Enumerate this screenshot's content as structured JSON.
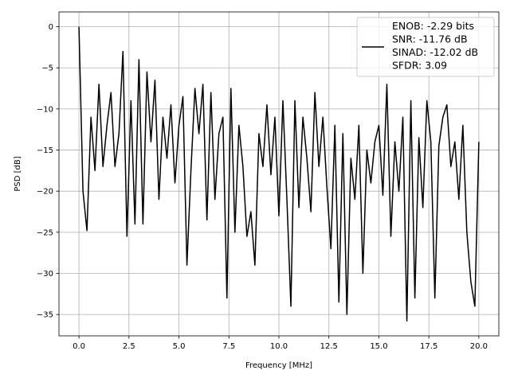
{
  "chart_data": {
    "type": "line",
    "xlabel": "Frequency [MHz]",
    "ylabel": "PSD [dB]",
    "x": [
      0.0,
      0.2,
      0.4,
      0.6,
      0.8,
      1.0,
      1.2,
      1.4,
      1.6,
      1.8,
      2.0,
      2.2,
      2.4,
      2.6,
      2.8,
      3.0,
      3.2,
      3.4,
      3.6,
      3.8,
      4.0,
      4.2,
      4.4,
      4.6,
      4.8,
      5.0,
      5.2,
      5.4,
      5.6,
      5.8,
      6.0,
      6.2,
      6.4,
      6.6,
      6.8,
      7.0,
      7.2,
      7.4,
      7.6,
      7.8,
      8.0,
      8.2,
      8.4,
      8.6,
      8.8,
      9.0,
      9.2,
      9.4,
      9.6,
      9.8,
      10.0,
      10.2,
      10.4,
      10.6,
      10.8,
      11.0,
      11.2,
      11.4,
      11.6,
      11.8,
      12.0,
      12.2,
      12.4,
      12.6,
      12.8,
      13.0,
      13.2,
      13.4,
      13.6,
      13.8,
      14.0,
      14.2,
      14.4,
      14.6,
      14.8,
      15.0,
      15.2,
      15.4,
      15.6,
      15.8,
      16.0,
      16.2,
      16.4,
      16.6,
      16.8,
      17.0,
      17.2,
      17.4,
      17.6,
      17.8,
      18.0,
      18.2,
      18.4,
      18.6,
      18.8,
      19.0,
      19.2,
      19.4,
      19.6,
      19.8,
      20.0
    ],
    "series": [
      {
        "name": "ENOB: -2.29 bits\nSNR: -11.76 dB\nSINAD: -12.02 dB\nSFDR: 3.09",
        "color": "#000000",
        "values": [
          0,
          -20,
          -24.8,
          -11,
          -17.5,
          -7,
          -17,
          -12,
          -8,
          -17,
          -13,
          -3,
          -25.5,
          -9,
          -24,
          -4,
          -24,
          -5.5,
          -14,
          -6.5,
          -21,
          -11,
          -16,
          -9.5,
          -19,
          -12,
          -8.5,
          -29,
          -17.5,
          -7.5,
          -13,
          -7,
          -23.5,
          -8,
          -21,
          -13,
          -11,
          -33,
          -7.5,
          -25,
          -12,
          -17,
          -25.5,
          -22.5,
          -29,
          -13,
          -17,
          -9.5,
          -18,
          -11,
          -23,
          -9,
          -21,
          -34,
          -9,
          -22,
          -11,
          -16,
          -22.5,
          -8,
          -17,
          -11,
          -19.5,
          -27,
          -12,
          -33.5,
          -13,
          -35,
          -16,
          -21,
          -12,
          -30,
          -15,
          -19,
          -14,
          -12,
          -20.5,
          -7,
          -25.5,
          -14,
          -20,
          -11,
          -35.8,
          -9,
          -33,
          -13.5,
          -22,
          -9,
          -14,
          -33,
          -14.5,
          -11,
          -9.5,
          -17,
          -14,
          -21,
          -12,
          -25,
          -31,
          -34,
          -14
        ]
      }
    ],
    "xlim": [
      -1,
      21
    ],
    "ylim": [
      -37.6,
      1.8
    ],
    "xticks": [
      {
        "value": 0,
        "label": "0.0"
      },
      2.5,
      {
        "value": 5,
        "label": "5.0"
      },
      7.5,
      {
        "value": 10,
        "label": "10.0"
      },
      12.5,
      {
        "value": 15,
        "label": "15.0"
      },
      17.5,
      {
        "value": 20,
        "label": "20.0"
      }
    ],
    "yticks": [
      0,
      {
        "value": -5,
        "label": "−5"
      },
      {
        "value": -10,
        "label": "−10"
      },
      {
        "value": -15,
        "label": "−15"
      },
      {
        "value": -20,
        "label": "−20"
      },
      {
        "value": -25,
        "label": "−25"
      },
      {
        "value": -30,
        "label": "−30"
      },
      {
        "value": -35,
        "label": "−35"
      }
    ],
    "grid": true,
    "legend": "upper right"
  }
}
